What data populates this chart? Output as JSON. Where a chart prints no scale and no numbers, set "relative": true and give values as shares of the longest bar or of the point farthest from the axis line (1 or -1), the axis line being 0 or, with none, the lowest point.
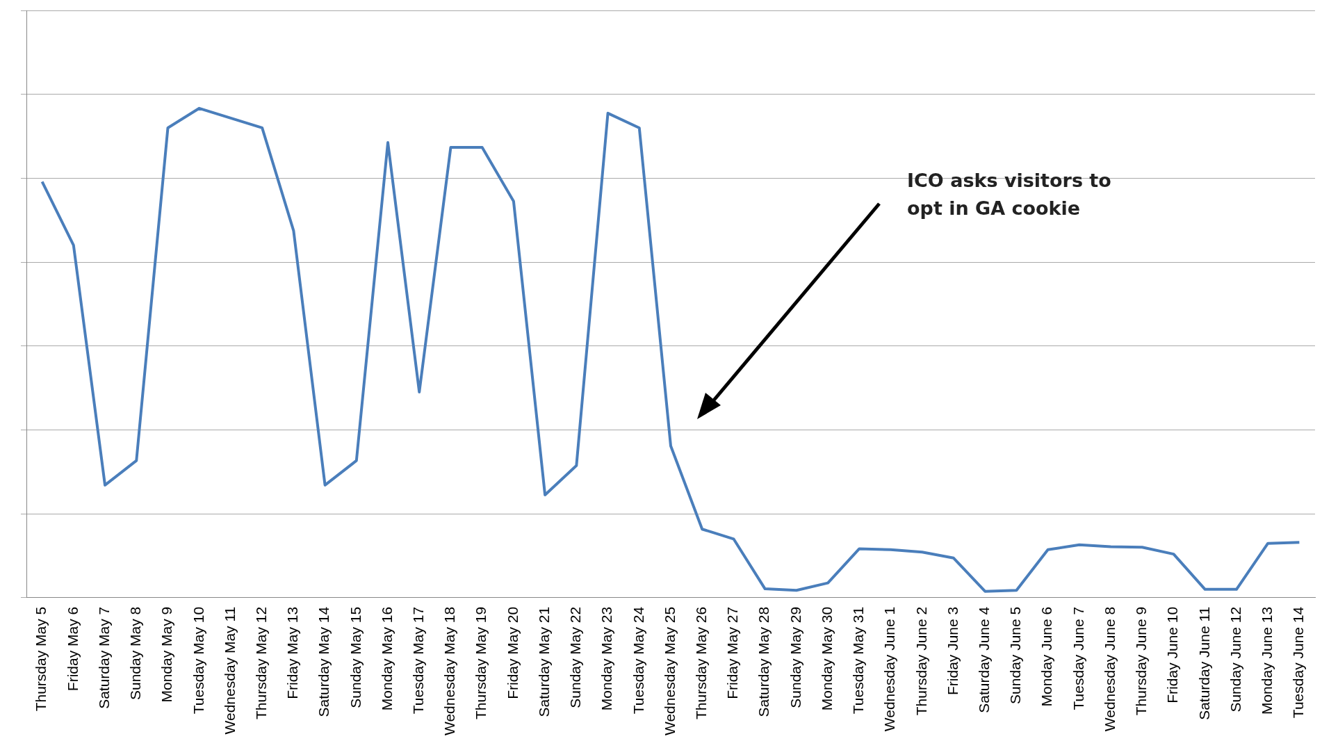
{
  "chart_data": {
    "type": "line",
    "relative": true,
    "grid": "y",
    "marker": "none",
    "line_style": "solid",
    "categories": [
      "Thursday May 5",
      "Friday May 6",
      "Saturday May 7",
      "Sunday May 8",
      "Monday May 9",
      "Tuesday May 10",
      "Wednesday May 11",
      "Thursday May 12",
      "Friday May 13",
      "Saturday May 14",
      "Sunday May 15",
      "Monday May 16",
      "Tuesday May 17",
      "Wednesday May 18",
      "Thursday May 19",
      "Friday May 20",
      "Saturday May 21",
      "Sunday May 22",
      "Monday May 23",
      "Tuesday May 24",
      "Wednesday May 25",
      "Thursday May 26",
      "Friday May 27",
      "Saturday May 28",
      "Sunday May 29",
      "Monday May 30",
      "Tuesday May 31",
      "Wednesday June 1",
      "Thursday June 2",
      "Friday June 3",
      "Saturday June 4",
      "Sunday June 5",
      "Monday June 6",
      "Tuesday June 7",
      "Wednesday June 8",
      "Thursday June 9",
      "Friday June 10",
      "Saturday June 11",
      "Sunday June 12",
      "Monday June 13",
      "Tuesday June 14"
    ],
    "series": [
      {
        "color": "#4a7ebb",
        "values": [
          0.85,
          0.72,
          0.23,
          0.28,
          0.96,
          1,
          0.98,
          0.96,
          0.75,
          0.23,
          0.28,
          0.93,
          0.42,
          0.92,
          0.92,
          0.81,
          0.21,
          0.27,
          0.99,
          0.96,
          0.31,
          0.14,
          0.12,
          0.018,
          0.015,
          0.03,
          0.1,
          0.098,
          0.093,
          0.081,
          0.013,
          0.015,
          0.098,
          0.108,
          0.104,
          0.103,
          0.089,
          0.017,
          0.017,
          0.111,
          0.113
        ]
      }
    ],
    "annotations": [
      "ICO asks visitors to opt in GA cookie"
    ]
  }
}
